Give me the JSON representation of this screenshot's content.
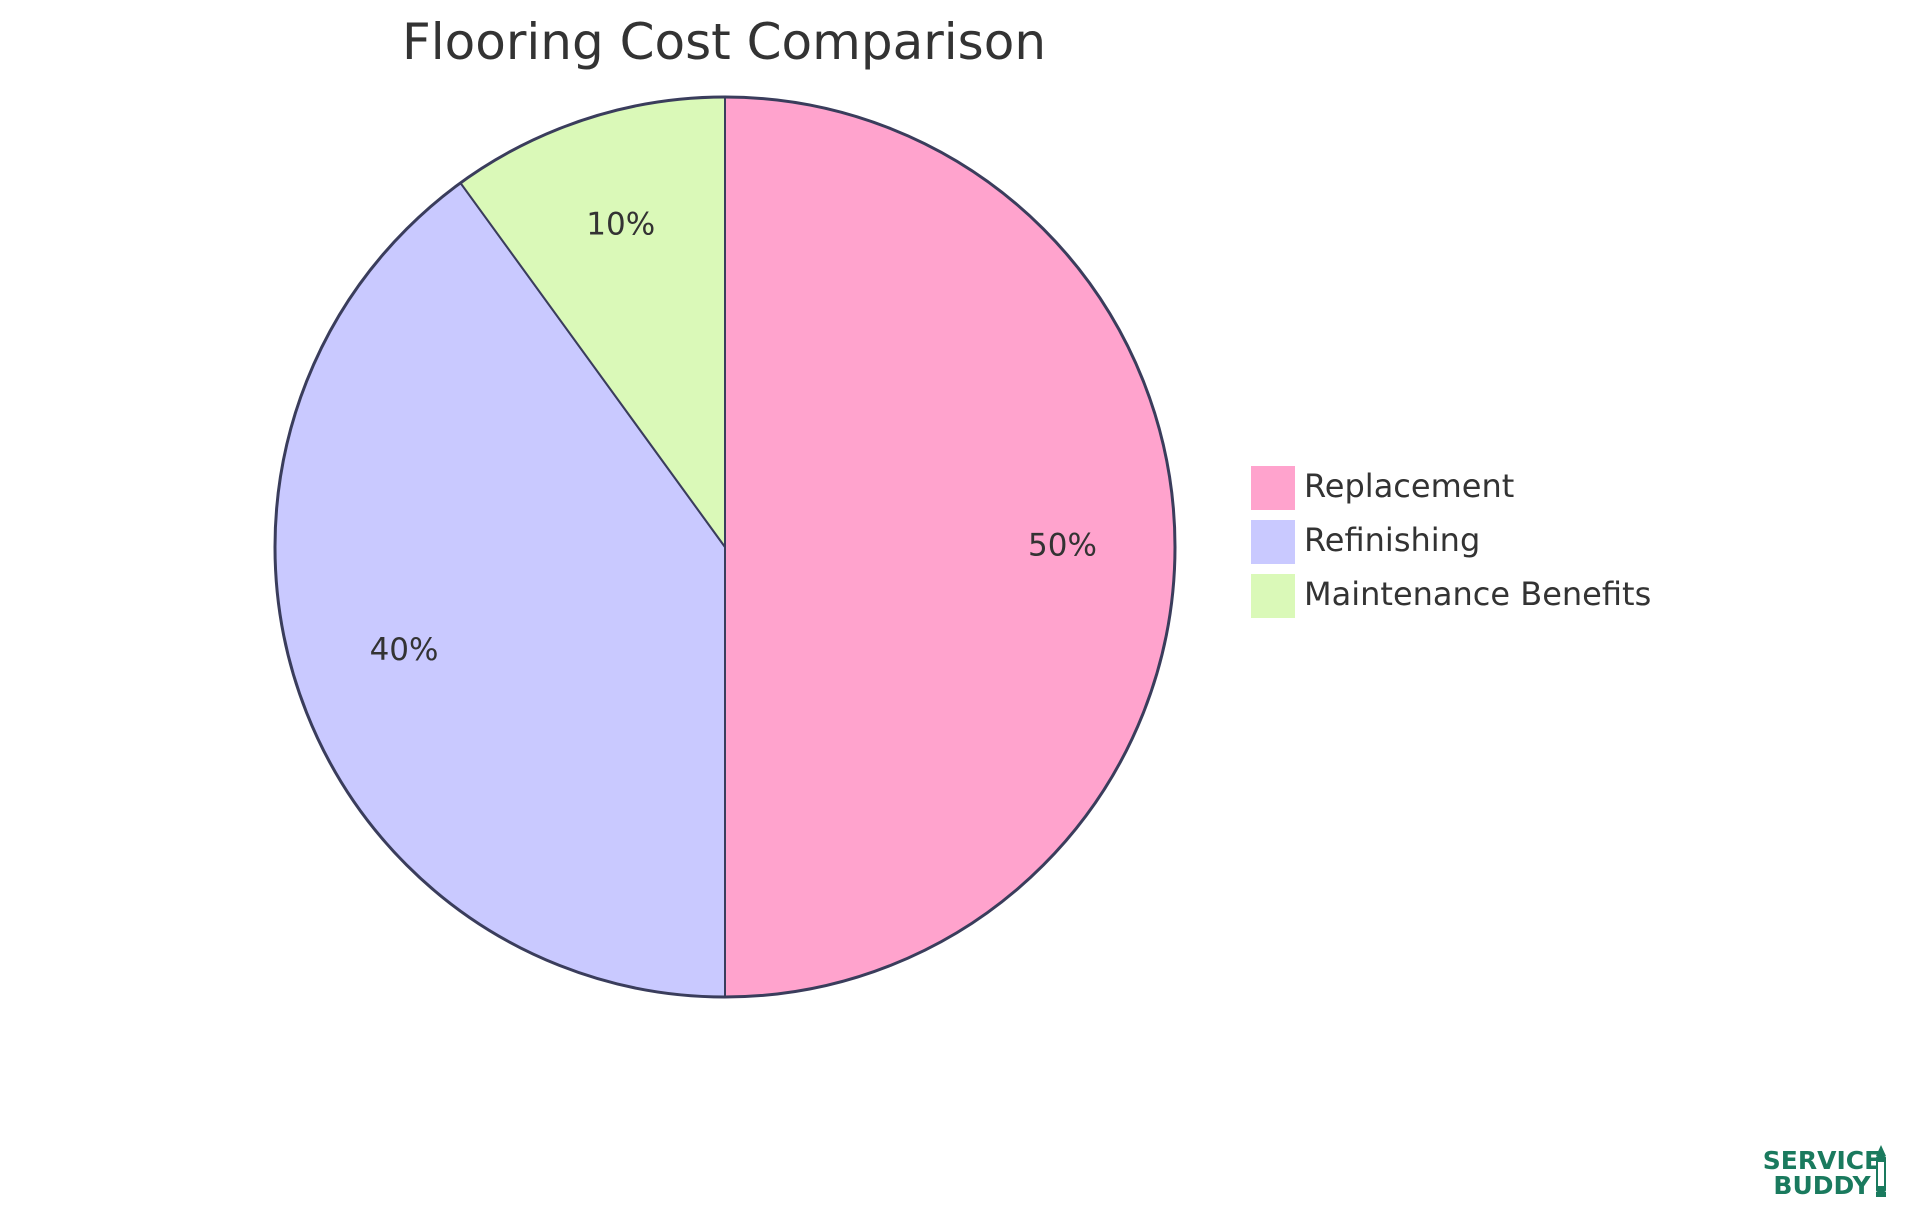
{
  "chart_data": {
    "type": "pie",
    "title": "Flooring Cost Comparison",
    "slices": [
      {
        "label": "Replacement",
        "value": 50,
        "display": "50%",
        "color": "#ffa3cd"
      },
      {
        "label": "Refinishing",
        "value": 40,
        "display": "40%",
        "color": "#c9c9ff"
      },
      {
        "label": "Maintenance Benefits",
        "value": 10,
        "display": "10%",
        "color": "#daf9b8"
      }
    ],
    "legend_position": "right",
    "stroke_color": "#3a3d5c"
  },
  "logo": {
    "line1": "SERVICE",
    "line2": "BUDDY",
    "color": "#1a7a5e"
  }
}
